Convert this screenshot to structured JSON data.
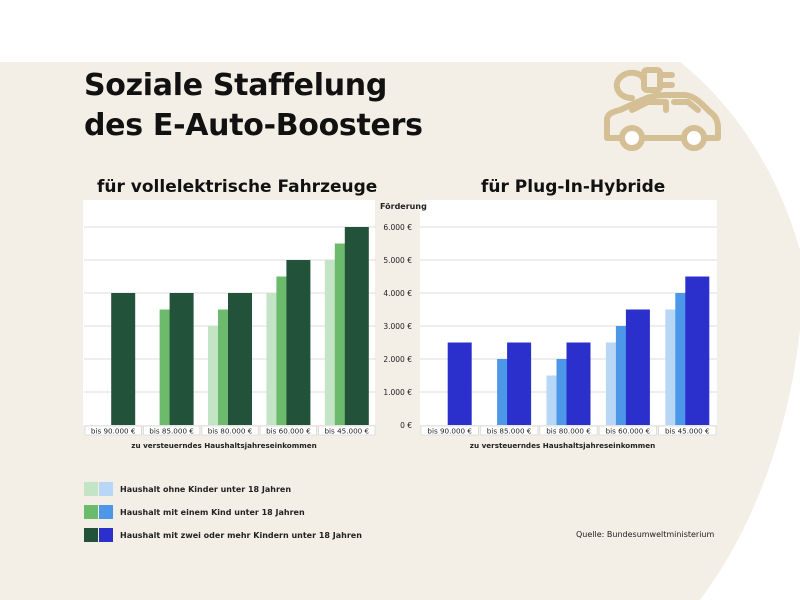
{
  "title_lines": [
    "Soziale Staffelung",
    "des E-Auto-Boosters"
  ],
  "icon": "electric-car-plug-icon",
  "colors": {
    "background_shape": "#f3efe6",
    "green": [
      "#c3e5c6",
      "#6cbb6d",
      "#23523a"
    ],
    "blue": [
      "#b8d6f5",
      "#4c97e8",
      "#2b2fcb"
    ]
  },
  "legend": [
    "Haushalt ohne Kinder unter 18 Jahren",
    "Haushalt mit einem Kind unter 18 Jahren",
    "Haushalt mit zwei oder mehr Kindern unter 18 Jahren"
  ],
  "source": "Quelle: Bundesumweltministerium",
  "chart_data": [
    {
      "type": "bar",
      "title": "für vollelektrische Fahrzeuge",
      "xlabel": "zu versteuerndes Haushaltsjahreseinkommen",
      "ylabel": "Förderung",
      "categories": [
        "bis 90.000 €",
        "bis 85.000 €",
        "bis 80.000 €",
        "bis 60.000 €",
        "bis 45.000 €"
      ],
      "series": [
        {
          "name": "Haushalt ohne Kinder unter 18 Jahren",
          "values": [
            null,
            null,
            3000,
            4000,
            5000
          ]
        },
        {
          "name": "Haushalt mit einem Kind unter 18 Jahren",
          "values": [
            null,
            3500,
            3500,
            4500,
            5500
          ]
        },
        {
          "name": "Haushalt mit zwei oder mehr Kindern unter 18 Jahren",
          "values": [
            4000,
            4000,
            4000,
            5000,
            6000
          ]
        }
      ],
      "ylim": [
        0,
        6000
      ],
      "yticks": [
        0,
        1000,
        2000,
        3000,
        4000,
        5000,
        6000
      ],
      "ytick_labels": [
        "0 €",
        "1.000 €",
        "2.000 €",
        "3.000 €",
        "4.000 €",
        "5.000 €",
        "6.000 €"
      ],
      "grid": true
    },
    {
      "type": "bar",
      "title": "für Plug-In-Hybride",
      "xlabel": "zu versteuerndes Haushaltsjahreseinkommen",
      "categories": [
        "bis 90.000 €",
        "bis 85.000 €",
        "bis 80.000 €",
        "bis 60.000 €",
        "bis 45.000 €"
      ],
      "series": [
        {
          "name": "Haushalt ohne Kinder unter 18 Jahren",
          "values": [
            null,
            null,
            1500,
            2500,
            3500
          ]
        },
        {
          "name": "Haushalt mit einem Kind unter 18 Jahren",
          "values": [
            null,
            2000,
            2000,
            3000,
            4000
          ]
        },
        {
          "name": "Haushalt mit zwei oder mehr Kindern unter 18 Jahren",
          "values": [
            2500,
            2500,
            2500,
            3500,
            4500
          ]
        }
      ],
      "ylim": [
        0,
        6000
      ],
      "grid": true
    }
  ]
}
